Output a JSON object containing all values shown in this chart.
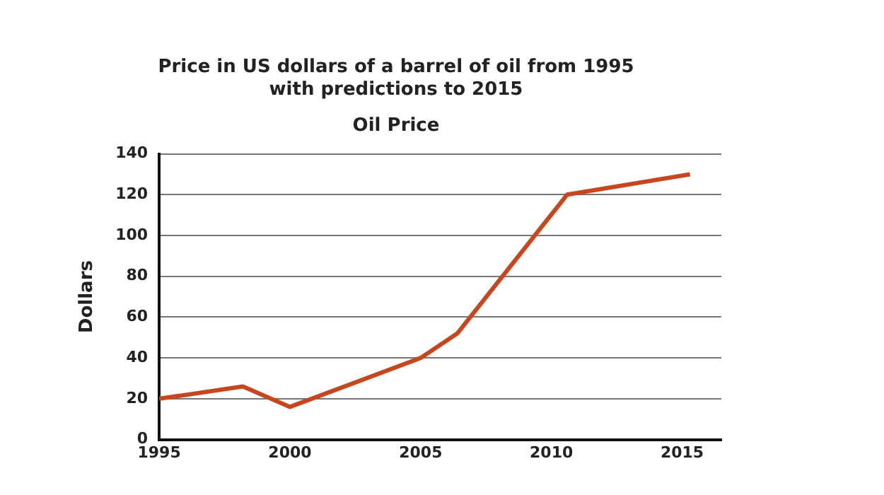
{
  "chart_data": {
    "type": "line",
    "title": "Price in US dollars of a barrel of oil from 1995\nwith predictions to 2015",
    "subtitle": "Oil Price",
    "ylabel": "Dollars",
    "x": [
      1995,
      1998.2,
      2000,
      2005,
      2006.4,
      2010.6,
      2015.3
    ],
    "series": [
      {
        "color": "#c8461e",
        "values": [
          20,
          26,
          16,
          40,
          52,
          120,
          130
        ]
      }
    ],
    "xlim": [
      1995,
      2016.5
    ],
    "xticks": [
      1995,
      2000,
      2005,
      2010,
      2015
    ],
    "ylim": [
      0,
      140
    ],
    "yticks": [
      0,
      20,
      40,
      60,
      80,
      100,
      120,
      140
    ],
    "grid": "y",
    "legend": false,
    "marker": "none",
    "line_style": "solid"
  }
}
